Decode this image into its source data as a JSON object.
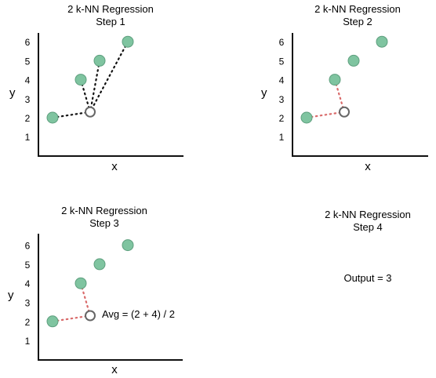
{
  "colors": {
    "point_fill": "#7fc4a0",
    "point_stroke": "#5e9f7e",
    "query_stroke": "#666666",
    "black_dots": "#111111",
    "red_dots": "#d96a6a",
    "axis": "#111111"
  },
  "panels": [
    {
      "title": "2 k-NN Regression",
      "step": "Step 1",
      "xlabel": "x",
      "ylabel": "y",
      "yticks": [
        "1",
        "2",
        "3",
        "4",
        "5",
        "6"
      ],
      "points": [
        {
          "x": 1,
          "y": 2
        },
        {
          "x": 3,
          "y": 4
        },
        {
          "x": 4,
          "y": 5
        },
        {
          "x": 6,
          "y": 6
        }
      ],
      "query": {
        "x": 3.5,
        "y": 2.3
      },
      "lines": [
        {
          "to": 0,
          "color": "black"
        },
        {
          "to": 1,
          "color": "black"
        },
        {
          "to": 2,
          "color": "black"
        },
        {
          "to": 3,
          "color": "black"
        }
      ],
      "annotation": ""
    },
    {
      "title": "2 k-NN Regression",
      "step": "Step 2",
      "xlabel": "x",
      "ylabel": "y",
      "yticks": [
        "1",
        "2",
        "3",
        "4",
        "5",
        "6"
      ],
      "points": [
        {
          "x": 1,
          "y": 2
        },
        {
          "x": 3,
          "y": 4
        },
        {
          "x": 4,
          "y": 5
        },
        {
          "x": 6,
          "y": 6
        }
      ],
      "query": {
        "x": 3.5,
        "y": 2.3
      },
      "lines": [
        {
          "to": 0,
          "color": "red"
        },
        {
          "to": 1,
          "color": "red"
        }
      ],
      "annotation": ""
    },
    {
      "title": "2 k-NN Regression",
      "step": "Step 3",
      "xlabel": "x",
      "ylabel": "y",
      "yticks": [
        "1",
        "2",
        "3",
        "4",
        "5",
        "6"
      ],
      "points": [
        {
          "x": 1,
          "y": 2
        },
        {
          "x": 3,
          "y": 4
        },
        {
          "x": 4,
          "y": 5
        },
        {
          "x": 6,
          "y": 6
        }
      ],
      "query": {
        "x": 3.5,
        "y": 2.3
      },
      "lines": [
        {
          "to": 0,
          "color": "red"
        },
        {
          "to": 1,
          "color": "red"
        }
      ],
      "annotation": "Avg = (2 + 4) / 2"
    }
  ],
  "step4": {
    "title": "2 k-NN Regression",
    "step": "Step 4",
    "output": "Output = 3"
  }
}
